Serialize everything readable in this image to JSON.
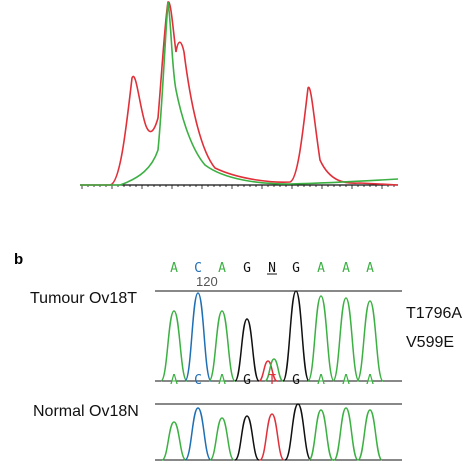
{
  "panel_b": {
    "label": "b",
    "tumour": {
      "label": "Tumour Ov18T",
      "bases": [
        "A",
        "C",
        "A",
        "G",
        "N",
        "G",
        "A",
        "A",
        "A"
      ],
      "position": "120",
      "mutation": "T1796A",
      "protein": "V599E"
    },
    "normal": {
      "label": "Normal Ov18N",
      "bases": [
        "A",
        "C",
        "A",
        "G",
        "T",
        "G",
        "A",
        "A",
        "A"
      ]
    }
  },
  "colors": {
    "A": "#3cb043",
    "C": "#1f6fb5",
    "G": "#111111",
    "T": "#e0303a",
    "N": "#111111",
    "trace_red": "#e0303a",
    "trace_green": "#3cb043"
  }
}
